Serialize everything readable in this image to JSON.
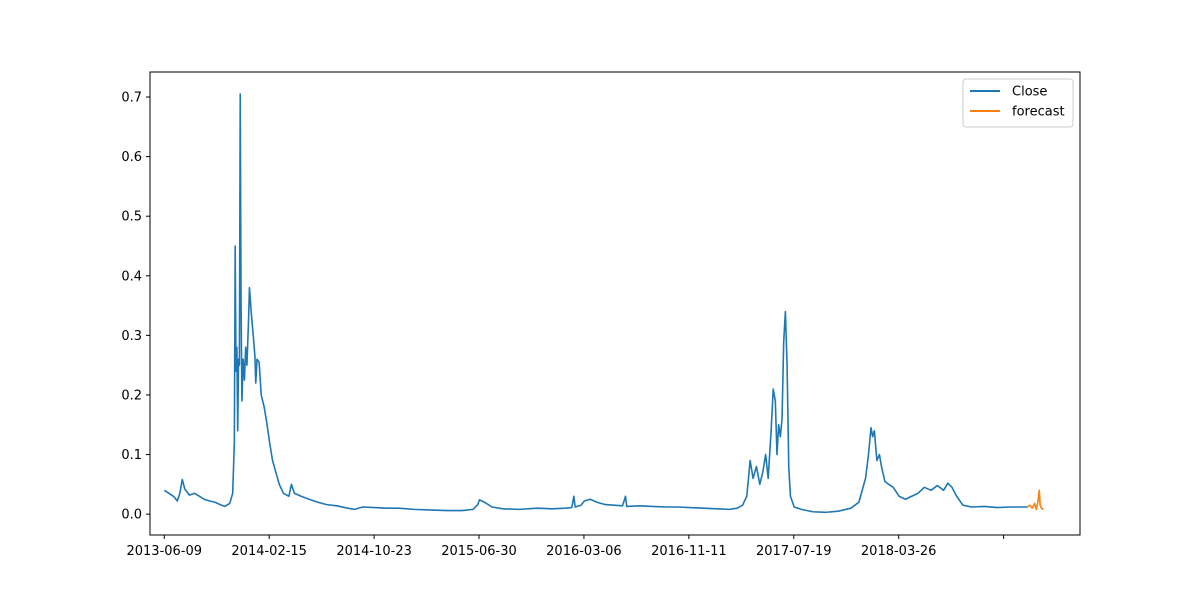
{
  "chart_data": {
    "type": "line",
    "title": "",
    "xlabel": "",
    "ylabel": "",
    "x_tick_labels": [
      "2013-06-09",
      "2014-02-15",
      "2014-10-23",
      "2015-06-30",
      "2016-03-06",
      "2016-11-11",
      "2017-07-19",
      "2018-03-26",
      ""
    ],
    "y_tick_labels": [
      "0.0",
      "0.1",
      "0.2",
      "0.3",
      "0.4",
      "0.5",
      "0.6",
      "0.7"
    ],
    "xlim": [
      "2013-05-06",
      "2019-05-31"
    ],
    "ylim": [
      -0.035,
      0.742
    ],
    "grid": false,
    "legend_position": "top-right",
    "series": [
      {
        "name": "Close",
        "color": "#1f77b4",
        "points": [
          [
            "2013-06-09",
            0.04
          ],
          [
            "2013-06-20",
            0.035
          ],
          [
            "2013-07-01",
            0.03
          ],
          [
            "2013-07-10",
            0.022
          ],
          [
            "2013-07-16",
            0.035
          ],
          [
            "2013-07-22",
            0.058
          ],
          [
            "2013-07-28",
            0.042
          ],
          [
            "2013-08-08",
            0.032
          ],
          [
            "2013-08-20",
            0.035
          ],
          [
            "2013-09-01",
            0.03
          ],
          [
            "2013-09-12",
            0.025
          ],
          [
            "2013-09-25",
            0.022
          ],
          [
            "2013-10-08",
            0.02
          ],
          [
            "2013-10-20",
            0.016
          ],
          [
            "2013-10-31",
            0.013
          ],
          [
            "2013-11-12",
            0.018
          ],
          [
            "2013-11-19",
            0.035
          ],
          [
            "2013-11-23",
            0.12
          ],
          [
            "2013-11-25",
            0.45
          ],
          [
            "2013-11-27",
            0.24
          ],
          [
            "2013-11-29",
            0.28
          ],
          [
            "2013-12-01",
            0.14
          ],
          [
            "2013-12-03",
            0.26
          ],
          [
            "2013-12-05",
            0.25
          ],
          [
            "2013-12-07",
            0.705
          ],
          [
            "2013-12-09",
            0.35
          ],
          [
            "2013-12-11",
            0.19
          ],
          [
            "2013-12-14",
            0.26
          ],
          [
            "2013-12-17",
            0.225
          ],
          [
            "2013-12-20",
            0.28
          ],
          [
            "2013-12-23",
            0.25
          ],
          [
            "2013-12-27",
            0.33
          ],
          [
            "2013-12-29",
            0.38
          ],
          [
            "2014-01-02",
            0.34
          ],
          [
            "2014-01-07",
            0.3
          ],
          [
            "2014-01-11",
            0.265
          ],
          [
            "2014-01-13",
            0.22
          ],
          [
            "2014-01-16",
            0.26
          ],
          [
            "2014-01-21",
            0.255
          ],
          [
            "2014-01-26",
            0.2
          ],
          [
            "2014-02-02",
            0.18
          ],
          [
            "2014-02-09",
            0.15
          ],
          [
            "2014-02-15",
            0.12
          ],
          [
            "2014-02-22",
            0.09
          ],
          [
            "2014-03-02",
            0.07
          ],
          [
            "2014-03-10",
            0.05
          ],
          [
            "2014-03-20",
            0.035
          ],
          [
            "2014-04-02",
            0.03
          ],
          [
            "2014-04-08",
            0.05
          ],
          [
            "2014-04-15",
            0.035
          ],
          [
            "2014-05-01",
            0.03
          ],
          [
            "2014-05-20",
            0.025
          ],
          [
            "2014-06-10",
            0.02
          ],
          [
            "2014-07-01",
            0.016
          ],
          [
            "2014-07-25",
            0.014
          ],
          [
            "2014-08-20",
            0.01
          ],
          [
            "2014-09-05",
            0.008
          ],
          [
            "2014-09-25",
            0.012
          ],
          [
            "2014-10-23",
            0.011
          ],
          [
            "2014-11-20",
            0.01
          ],
          [
            "2014-12-20",
            0.01
          ],
          [
            "2015-01-25",
            0.008
          ],
          [
            "2015-03-01",
            0.007
          ],
          [
            "2015-04-15",
            0.006
          ],
          [
            "2015-05-20",
            0.006
          ],
          [
            "2015-06-15",
            0.008
          ],
          [
            "2015-06-26",
            0.016
          ],
          [
            "2015-06-30",
            0.024
          ],
          [
            "2015-07-12",
            0.02
          ],
          [
            "2015-07-30",
            0.012
          ],
          [
            "2015-08-25",
            0.009
          ],
          [
            "2015-10-01",
            0.008
          ],
          [
            "2015-11-15",
            0.01
          ],
          [
            "2015-12-20",
            0.009
          ],
          [
            "2016-01-20",
            0.01
          ],
          [
            "2016-02-05",
            0.011
          ],
          [
            "2016-02-10",
            0.03
          ],
          [
            "2016-02-13",
            0.012
          ],
          [
            "2016-02-27",
            0.015
          ],
          [
            "2016-03-06",
            0.022
          ],
          [
            "2016-03-20",
            0.025
          ],
          [
            "2016-04-05",
            0.02
          ],
          [
            "2016-04-25",
            0.016
          ],
          [
            "2016-05-15",
            0.015
          ],
          [
            "2016-06-05",
            0.014
          ],
          [
            "2016-06-12",
            0.03
          ],
          [
            "2016-06-15",
            0.013
          ],
          [
            "2016-07-15",
            0.014
          ],
          [
            "2016-08-15",
            0.013
          ],
          [
            "2016-09-15",
            0.012
          ],
          [
            "2016-10-15",
            0.012
          ],
          [
            "2016-11-11",
            0.011
          ],
          [
            "2016-12-15",
            0.01
          ],
          [
            "2017-01-15",
            0.009
          ],
          [
            "2017-02-15",
            0.008
          ],
          [
            "2017-03-05",
            0.01
          ],
          [
            "2017-03-18",
            0.015
          ],
          [
            "2017-03-28",
            0.03
          ],
          [
            "2017-04-05",
            0.09
          ],
          [
            "2017-04-12",
            0.06
          ],
          [
            "2017-04-20",
            0.08
          ],
          [
            "2017-04-28",
            0.05
          ],
          [
            "2017-05-05",
            0.07
          ],
          [
            "2017-05-12",
            0.1
          ],
          [
            "2017-05-18",
            0.06
          ],
          [
            "2017-05-25",
            0.14
          ],
          [
            "2017-05-30",
            0.21
          ],
          [
            "2017-06-04",
            0.19
          ],
          [
            "2017-06-08",
            0.1
          ],
          [
            "2017-06-12",
            0.15
          ],
          [
            "2017-06-16",
            0.13
          ],
          [
            "2017-06-20",
            0.16
          ],
          [
            "2017-06-24",
            0.29
          ],
          [
            "2017-06-28",
            0.34
          ],
          [
            "2017-07-02",
            0.25
          ],
          [
            "2017-07-06",
            0.08
          ],
          [
            "2017-07-10",
            0.03
          ],
          [
            "2017-07-19",
            0.012
          ],
          [
            "2017-08-05",
            0.008
          ],
          [
            "2017-09-01",
            0.004
          ],
          [
            "2017-10-01",
            0.003
          ],
          [
            "2017-11-01",
            0.005
          ],
          [
            "2017-12-01",
            0.01
          ],
          [
            "2017-12-20",
            0.02
          ],
          [
            "2018-01-05",
            0.06
          ],
          [
            "2018-01-12",
            0.1
          ],
          [
            "2018-01-18",
            0.145
          ],
          [
            "2018-01-22",
            0.13
          ],
          [
            "2018-01-26",
            0.14
          ],
          [
            "2018-02-01",
            0.09
          ],
          [
            "2018-02-07",
            0.1
          ],
          [
            "2018-02-12",
            0.08
          ],
          [
            "2018-02-20",
            0.055
          ],
          [
            "2018-03-01",
            0.05
          ],
          [
            "2018-03-12",
            0.045
          ],
          [
            "2018-03-26",
            0.03
          ],
          [
            "2018-04-10",
            0.025
          ],
          [
            "2018-04-25",
            0.03
          ],
          [
            "2018-05-10",
            0.035
          ],
          [
            "2018-05-25",
            0.045
          ],
          [
            "2018-06-10",
            0.04
          ],
          [
            "2018-06-25",
            0.048
          ],
          [
            "2018-07-10",
            0.04
          ],
          [
            "2018-07-20",
            0.052
          ],
          [
            "2018-07-30",
            0.045
          ],
          [
            "2018-08-10",
            0.03
          ],
          [
            "2018-08-25",
            0.015
          ],
          [
            "2018-09-15",
            0.012
          ],
          [
            "2018-10-15",
            0.013
          ],
          [
            "2018-11-15",
            0.011
          ],
          [
            "2018-12-15",
            0.012
          ],
          [
            "2019-01-15",
            0.012
          ],
          [
            "2019-01-26",
            0.012
          ]
        ]
      },
      {
        "name": "forecast",
        "color": "#ff7f0e",
        "points": [
          [
            "2019-01-26",
            0.012
          ],
          [
            "2019-02-01",
            0.015
          ],
          [
            "2019-02-06",
            0.01
          ],
          [
            "2019-02-12",
            0.018
          ],
          [
            "2019-02-16",
            0.008
          ],
          [
            "2019-02-20",
            0.022
          ],
          [
            "2019-02-23",
            0.04
          ],
          [
            "2019-02-25",
            0.015
          ],
          [
            "2019-02-28",
            0.01
          ],
          [
            "2019-03-05",
            0.008
          ]
        ]
      }
    ]
  }
}
